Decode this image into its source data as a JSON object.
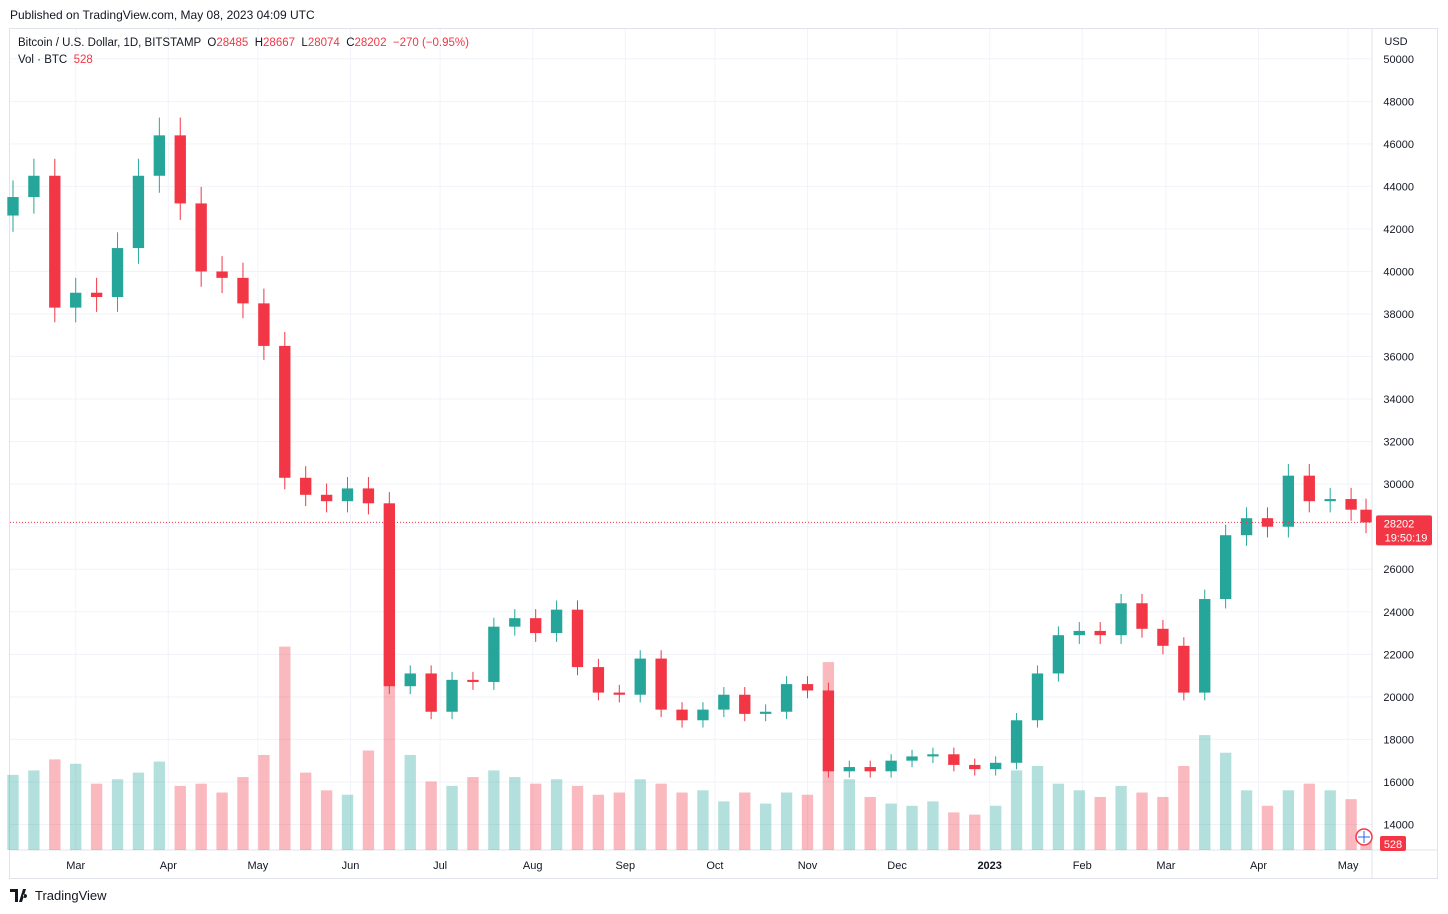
{
  "header": {
    "published": "Published on TradingView.com, May 08, 2023 04:09 UTC"
  },
  "legend": {
    "symbol": "Bitcoin / U.S. Dollar, 1D, BITSTAMP",
    "open_label": "O",
    "open": "28485",
    "high_label": "H",
    "high": "28667",
    "low_label": "L",
    "low": "28074",
    "close_label": "C",
    "close": "28202",
    "change": "−270 (−0.95%)",
    "volume_label": "Vol · BTC",
    "volume": "528"
  },
  "price_axis": {
    "currency": "USD",
    "last_price": "28202",
    "countdown": "19:50:19",
    "volume_badge": "528"
  },
  "footer": {
    "brand": "TradingView"
  },
  "colors": {
    "up": "#26a69a",
    "down": "#f23645",
    "grid": "#f0f3fa",
    "axis_text": "#131722"
  },
  "chart_data": {
    "type": "candlestick",
    "title": "Bitcoin / U.S. Dollar, 1D, BITSTAMP",
    "ylabel": "USD",
    "ylim": [
      12800,
      51400
    ],
    "y_ticks": [
      14000,
      16000,
      18000,
      20000,
      22000,
      24000,
      26000,
      28000,
      30000,
      32000,
      34000,
      36000,
      38000,
      40000,
      42000,
      44000,
      46000,
      48000,
      50000
    ],
    "x_ticks": [
      "Mar",
      "Apr",
      "May",
      "Jun",
      "Jul",
      "Aug",
      "Sep",
      "Oct",
      "Nov",
      "Dec",
      "2023",
      "Feb",
      "Mar",
      "Apr",
      "May"
    ],
    "grid": true,
    "last_close": 28202,
    "series": [
      {
        "name": "Bitcoin / U.S. Dollar",
        "x": [
          "2022-02-08",
          "2022-02-15",
          "2022-02-22",
          "2022-03-01",
          "2022-03-08",
          "2022-03-15",
          "2022-03-22",
          "2022-03-29",
          "2022-04-05",
          "2022-04-12",
          "2022-04-19",
          "2022-04-26",
          "2022-05-03",
          "2022-05-10",
          "2022-05-17",
          "2022-05-24",
          "2022-05-31",
          "2022-06-07",
          "2022-06-14",
          "2022-06-21",
          "2022-06-28",
          "2022-07-05",
          "2022-07-12",
          "2022-07-19",
          "2022-07-26",
          "2022-08-02",
          "2022-08-09",
          "2022-08-16",
          "2022-08-23",
          "2022-08-30",
          "2022-09-06",
          "2022-09-13",
          "2022-09-20",
          "2022-09-27",
          "2022-10-04",
          "2022-10-11",
          "2022-10-18",
          "2022-10-25",
          "2022-11-01",
          "2022-11-08",
          "2022-11-15",
          "2022-11-22",
          "2022-11-29",
          "2022-12-06",
          "2022-12-13",
          "2022-12-20",
          "2022-12-27",
          "2023-01-03",
          "2023-01-10",
          "2023-01-17",
          "2023-01-24",
          "2023-01-31",
          "2023-02-07",
          "2023-02-14",
          "2023-02-21",
          "2023-02-28",
          "2023-03-07",
          "2023-03-14",
          "2023-03-21",
          "2023-03-28",
          "2023-04-04",
          "2023-04-11",
          "2023-04-18",
          "2023-04-25",
          "2023-05-02",
          "2023-05-07"
        ],
        "close": [
          43500,
          44500,
          38300,
          39000,
          38800,
          41100,
          44500,
          46400,
          43200,
          40000,
          39700,
          38500,
          36500,
          30300,
          29500,
          29200,
          29800,
          29100,
          20500,
          21100,
          19300,
          20800,
          20700,
          23300,
          23700,
          23000,
          24100,
          21400,
          20200,
          20100,
          21800,
          19400,
          18900,
          19400,
          20100,
          19200,
          19300,
          20600,
          20300,
          16500,
          16700,
          16500,
          17000,
          17200,
          17300,
          16800,
          16600,
          16900,
          18900,
          21100,
          22900,
          23100,
          22900,
          24400,
          23200,
          22400,
          20200,
          24600,
          27600,
          28400,
          28000,
          30400,
          29200,
          29300,
          28800,
          28202
        ],
        "volume": [
          3400,
          3600,
          4100,
          3900,
          3000,
          3200,
          3500,
          4000,
          2900,
          3000,
          2600,
          3300,
          4300,
          9200,
          3500,
          2700,
          2500,
          4500,
          9500,
          4300,
          3100,
          2900,
          3300,
          3600,
          3300,
          3000,
          3200,
          2900,
          2500,
          2600,
          3200,
          3000,
          2600,
          2700,
          2200,
          2600,
          2100,
          2600,
          2500,
          8500,
          3200,
          2400,
          2100,
          2000,
          2200,
          1700,
          1600,
          2000,
          3600,
          3800,
          3000,
          2700,
          2400,
          2900,
          2600,
          2400,
          3800,
          5200,
          4400,
          2700,
          2000,
          2700,
          3000,
          2700,
          2300,
          528
        ]
      }
    ]
  }
}
